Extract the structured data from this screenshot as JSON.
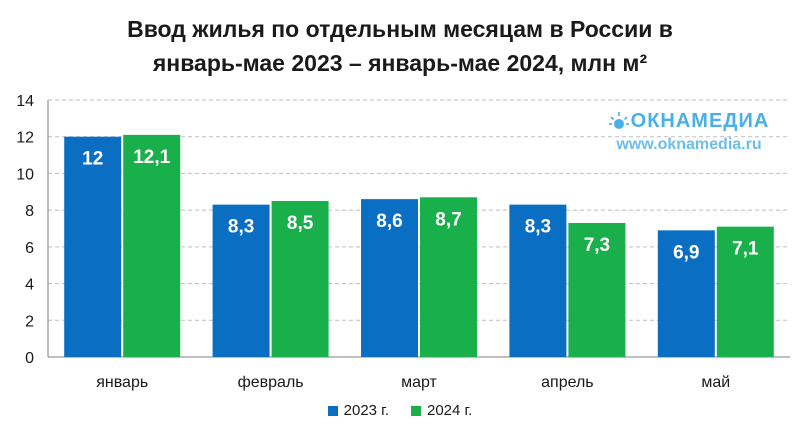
{
  "chart_data": {
    "type": "bar",
    "title": "Ввод жилья по отдельным месяцам в России в январь-мае 2023 – январь-мае 2024, млн м²",
    "title_lines": [
      "Ввод жилья по отдельным месяцам в России в",
      "январь-мае 2023 – январь-мае 2024, млн м²"
    ],
    "categories": [
      "январь",
      "февраль",
      "март",
      "апрель",
      "май"
    ],
    "series": [
      {
        "name": "2023 г.",
        "color": "#0a6fc2",
        "values": [
          12,
          8.3,
          8.6,
          8.3,
          6.9
        ],
        "labels": [
          "12",
          "8,3",
          "8,6",
          "8,3",
          "6,9"
        ]
      },
      {
        "name": "2024 г.",
        "color": "#19b04b",
        "values": [
          12.1,
          8.5,
          8.7,
          7.3,
          7.1
        ],
        "labels": [
          "12,1",
          "8,5",
          "8,7",
          "7,3",
          "7,1"
        ]
      }
    ],
    "ylim": [
      0,
      14
    ],
    "yticks": [
      0,
      2,
      4,
      6,
      8,
      10,
      12,
      14
    ],
    "grid": true,
    "legend_position": "bottom"
  },
  "watermark": {
    "brand": "ОКНАМЕДИА",
    "url": "www.oknamedia.ru",
    "color": "#4ab0e8"
  }
}
